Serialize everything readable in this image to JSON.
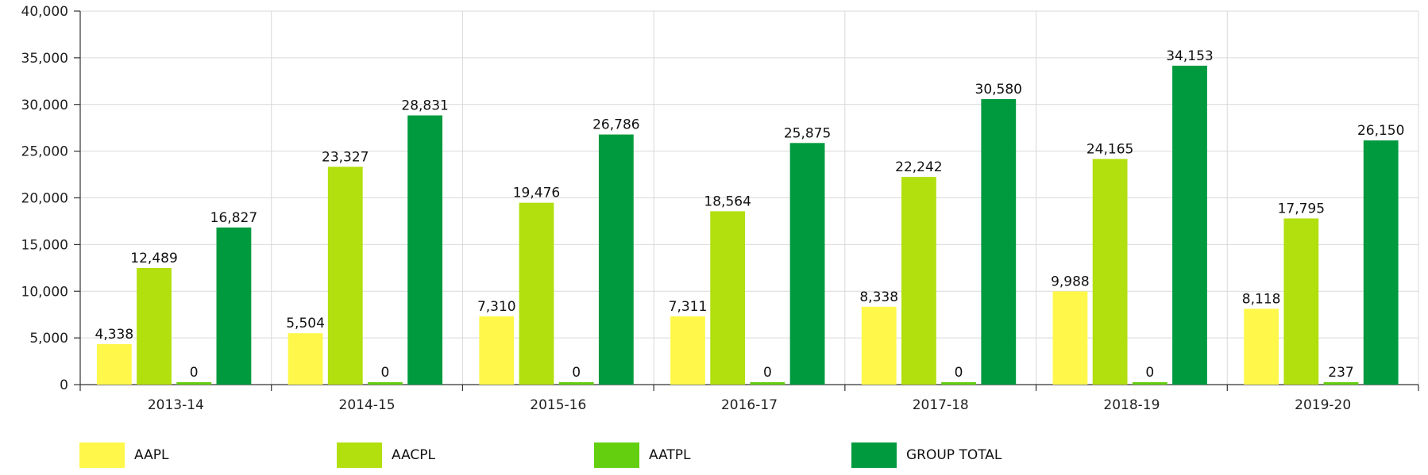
{
  "chart_data": {
    "type": "bar",
    "categories": [
      "2013-14",
      "2014-15",
      "2015-16",
      "2016-17",
      "2017-18",
      "2018-19",
      "2019-20"
    ],
    "series": [
      {
        "name": "AAPL",
        "color": "#FFF84A",
        "values": [
          4338,
          5504,
          7310,
          7311,
          8338,
          9988,
          8118
        ],
        "labels": [
          "4,338",
          "5,504",
          "7,310",
          "7,311",
          "8,338",
          "9,988",
          "8,118"
        ]
      },
      {
        "name": "AACPL",
        "color": "#B2DF0E",
        "values": [
          12489,
          23327,
          19476,
          18564,
          22242,
          24165,
          17795
        ],
        "labels": [
          "12,489",
          "23,327",
          "19,476",
          "18,564",
          "22,242",
          "24,165",
          "17,795"
        ]
      },
      {
        "name": "AATPL",
        "color": "#63CF0F",
        "values": [
          0,
          0,
          0,
          0,
          0,
          0,
          237
        ],
        "labels": [
          "0",
          "0",
          "0",
          "0",
          "0",
          "0",
          "237"
        ]
      },
      {
        "name": "GROUP TOTAL",
        "color": "#009A3E",
        "values": [
          16827,
          28831,
          26786,
          25875,
          30580,
          34153,
          26150
        ],
        "labels": [
          "16,827",
          "28,831",
          "26,786",
          "25,875",
          "30,580",
          "34,153",
          "26,150"
        ]
      }
    ],
    "ylim": [
      0,
      40000
    ],
    "yticks": [
      0,
      5000,
      10000,
      15000,
      20000,
      25000,
      30000,
      35000,
      40000
    ],
    "ytick_labels": [
      "0",
      "5,000",
      "10,000",
      "15,000",
      "20,000",
      "25,000",
      "30,000",
      "35,000",
      "40,000"
    ],
    "grid": true,
    "legend_position": "bottom"
  }
}
